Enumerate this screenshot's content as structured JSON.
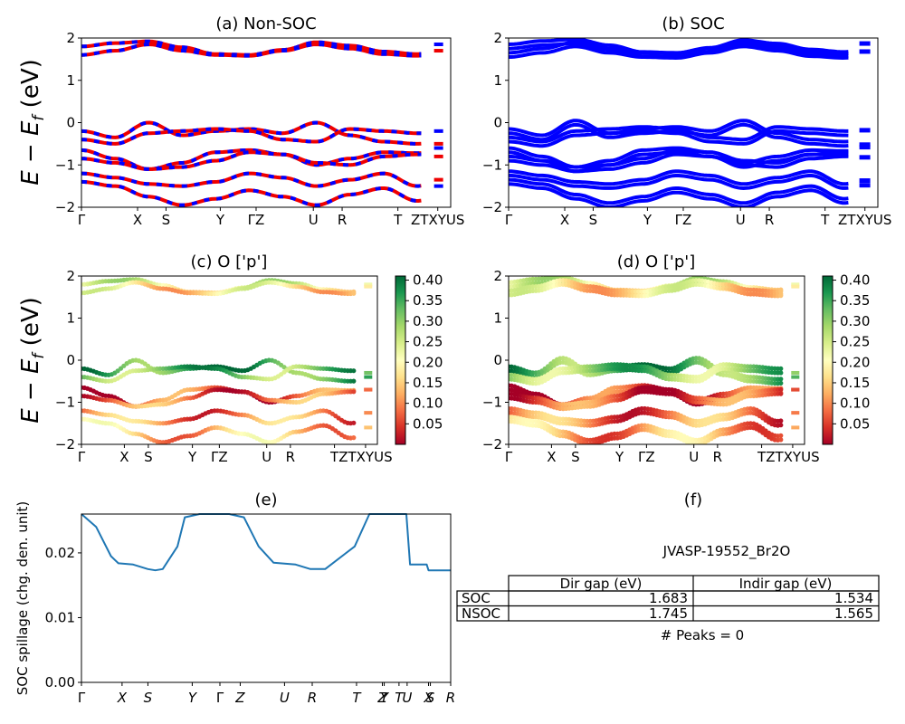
{
  "figure": {
    "ylabel_top": "E − E_f (eV)",
    "colorscale": [
      "#a50026",
      "#d73027",
      "#f46d43",
      "#fdae61",
      "#fee08b",
      "#ffffbf",
      "#d9ef8b",
      "#a6d96a",
      "#66bd63",
      "#1a9850",
      "#006837"
    ]
  },
  "chart_data": [
    {
      "panel": "a",
      "type": "line",
      "title": "(a) Non-SOC",
      "xlabel": "",
      "ylabel": "E − E_f (eV)",
      "ylim": [
        -2,
        2
      ],
      "yticks": [
        "2",
        "1",
        "0",
        "−1",
        "−2"
      ],
      "xticks": [
        "Γ",
        "X",
        "S",
        "Y",
        "ΓZ",
        "U",
        "R",
        "T",
        "ZTXYUS"
      ],
      "series": [
        {
          "values": [
            1.8,
            1.88,
            1.92,
            1.78,
            1.62,
            1.6,
            1.72,
            1.9,
            1.82,
            1.68,
            1.62,
            1.8
          ]
        },
        {
          "values": [
            1.6,
            1.7,
            1.85,
            1.7,
            1.6,
            1.58,
            1.7,
            1.85,
            1.75,
            1.62,
            1.58,
            1.75
          ]
        },
        {
          "values": [
            -0.2,
            -0.35,
            0.0,
            -0.3,
            -0.2,
            -0.15,
            -0.25,
            0.0,
            -0.3,
            -0.45,
            -0.5,
            -0.4
          ]
        },
        {
          "values": [
            -0.4,
            -0.5,
            -0.25,
            -0.2,
            -0.15,
            -0.2,
            -0.4,
            -0.45,
            -0.15,
            -0.2,
            -0.25,
            -0.3
          ]
        },
        {
          "values": [
            -0.65,
            -0.85,
            -1.1,
            -0.95,
            -0.7,
            -0.65,
            -0.75,
            -1.0,
            -0.85,
            -0.7,
            -0.72,
            -0.7
          ]
        },
        {
          "values": [
            -0.85,
            -0.95,
            -1.1,
            -1.05,
            -0.9,
            -0.7,
            -0.75,
            -0.95,
            -1.0,
            -0.8,
            -0.75,
            -0.7
          ]
        },
        {
          "values": [
            -1.2,
            -1.3,
            -1.45,
            -1.5,
            -1.4,
            -1.2,
            -1.3,
            -1.5,
            -1.35,
            -1.2,
            -1.5,
            -1.25
          ]
        },
        {
          "values": [
            -1.4,
            -1.5,
            -1.75,
            -1.95,
            -1.8,
            -1.6,
            -1.75,
            -1.95,
            -1.7,
            -1.55,
            -1.85,
            -1.6
          ]
        }
      ]
    },
    {
      "panel": "b",
      "type": "line",
      "title": "(b) SOC",
      "xlabel": "",
      "ylabel": "",
      "ylim": [
        -2,
        2
      ],
      "yticks": [
        "2",
        "1",
        "0",
        "−1",
        "−2"
      ],
      "xticks": [
        "Γ",
        "X",
        "S",
        "Y",
        "ΓZ",
        "U",
        "R",
        "T",
        "ZTXYUS"
      ]
    },
    {
      "panel": "c",
      "type": "scatter",
      "title": "(c)  O ['p']",
      "xlabel": "",
      "ylabel": "E − E_f (eV)",
      "ylim": [
        -2,
        2
      ],
      "yticks": [
        "2",
        "1",
        "0",
        "−1",
        "−2"
      ],
      "xticks": [
        "Γ",
        "X",
        "S",
        "Y",
        "ΓZ",
        "U",
        "R",
        "T",
        "ZTXYUS"
      ],
      "colorbar_ticks": [
        "0.40",
        "0.35",
        "0.30",
        "0.25",
        "0.20",
        "0.15",
        "0.10",
        "0.05"
      ],
      "colorbar_range": [
        0.0,
        0.41
      ],
      "band_weights": [
        0.22,
        0.18,
        0.36,
        0.32,
        0.06,
        0.08,
        0.1,
        0.14
      ]
    },
    {
      "panel": "d",
      "type": "scatter",
      "title": "(d) O ['p']",
      "xlabel": "",
      "ylabel": "",
      "ylim": [
        -2,
        2
      ],
      "yticks": [
        "2",
        "1",
        "0",
        "−1",
        "−2"
      ],
      "xticks": [
        "Γ",
        "X",
        "S",
        "Y",
        "ΓZ",
        "U",
        "R",
        "T",
        "ZTXYUS"
      ],
      "colorbar_ticks": [
        "0.40",
        "0.35",
        "0.30",
        "0.25",
        "0.20",
        "0.15",
        "0.10",
        "0.05"
      ],
      "colorbar_range": [
        0.0,
        0.41
      ],
      "band_weights": [
        0.22,
        0.18,
        0.34,
        0.3,
        0.04,
        0.06,
        0.09,
        0.12
      ]
    },
    {
      "panel": "e",
      "type": "line",
      "title": "(e)",
      "xlabel": "",
      "ylabel": "SOC spillage (chg. den. unit)",
      "ylim": [
        0,
        0.026
      ],
      "yticks": [
        "0.00",
        "0.01",
        "0.02"
      ],
      "xticks": [
        "Γ",
        "X",
        "S",
        "Y",
        "Γ",
        "Z",
        "U",
        "R",
        "T",
        "Z",
        "Y",
        "T",
        "U",
        "X",
        "S",
        "R"
      ],
      "series": [
        {
          "x": [
            0,
            0.04,
            0.08,
            0.1,
            0.14,
            0.18,
            0.2,
            0.22,
            0.26,
            0.28,
            0.32,
            0.4,
            0.44,
            0.48,
            0.52,
            0.58,
            0.62,
            0.66,
            0.74,
            0.78,
            0.86,
            0.88,
            0.89,
            0.92,
            0.935,
            0.94,
            1.0
          ],
          "y": [
            0.026,
            0.024,
            0.0195,
            0.0184,
            0.0182,
            0.0175,
            0.0173,
            0.0175,
            0.021,
            0.0255,
            0.026,
            0.026,
            0.0255,
            0.021,
            0.0185,
            0.0182,
            0.0175,
            0.0175,
            0.021,
            0.026,
            0.026,
            0.026,
            0.0182,
            0.0182,
            0.0182,
            0.0173,
            0.0173
          ]
        }
      ]
    },
    {
      "panel": "f",
      "type": "table",
      "title": "(f)",
      "subtitle": "JVASP-19552_Br2O",
      "columns": [
        "Dir gap (eV)",
        "Indir gap (eV)"
      ],
      "rows": [
        {
          "label": "SOC",
          "values": [
            "1.683",
            "1.534"
          ]
        },
        {
          "label": "NSOC",
          "values": [
            "1.745",
            "1.565"
          ]
        }
      ],
      "footer": "# Peaks = 0"
    }
  ]
}
